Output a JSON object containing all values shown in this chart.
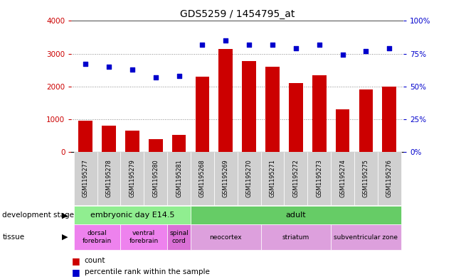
{
  "title": "GDS5259 / 1454795_at",
  "samples": [
    "GSM1195277",
    "GSM1195278",
    "GSM1195279",
    "GSM1195280",
    "GSM1195281",
    "GSM1195268",
    "GSM1195269",
    "GSM1195270",
    "GSM1195271",
    "GSM1195272",
    "GSM1195273",
    "GSM1195274",
    "GSM1195275",
    "GSM1195276"
  ],
  "counts": [
    950,
    800,
    650,
    400,
    530,
    2300,
    3150,
    2780,
    2600,
    2100,
    2350,
    1300,
    1900,
    2000
  ],
  "percentiles": [
    67,
    65,
    63,
    57,
    58,
    82,
    85,
    82,
    82,
    79,
    82,
    74,
    77,
    79
  ],
  "bar_color": "#cc0000",
  "dot_color": "#0000cc",
  "ylim_left": [
    0,
    4000
  ],
  "ylim_right": [
    0,
    100
  ],
  "yticks_left": [
    0,
    1000,
    2000,
    3000,
    4000
  ],
  "yticks_right": [
    0,
    25,
    50,
    75,
    100
  ],
  "dev_stage_groups": [
    {
      "label": "embryonic day E14.5",
      "start": 0,
      "end": 5,
      "color": "#90ee90"
    },
    {
      "label": "adult",
      "start": 5,
      "end": 14,
      "color": "#66cc66"
    }
  ],
  "tissue_groups": [
    {
      "label": "dorsal\nforebrain",
      "start": 0,
      "end": 2,
      "color": "#ee82ee"
    },
    {
      "label": "ventral\nforebrain",
      "start": 2,
      "end": 4,
      "color": "#ee82ee"
    },
    {
      "label": "spinal\ncord",
      "start": 4,
      "end": 5,
      "color": "#da70d6"
    },
    {
      "label": "neocortex",
      "start": 5,
      "end": 8,
      "color": "#dda0dd"
    },
    {
      "label": "striatum",
      "start": 8,
      "end": 11,
      "color": "#dda0dd"
    },
    {
      "label": "subventricular zone",
      "start": 11,
      "end": 14,
      "color": "#dda0dd"
    }
  ],
  "plot_bg": "#e8e8e8",
  "tick_bg": "#d0d0d0",
  "grid_color": "#888888"
}
